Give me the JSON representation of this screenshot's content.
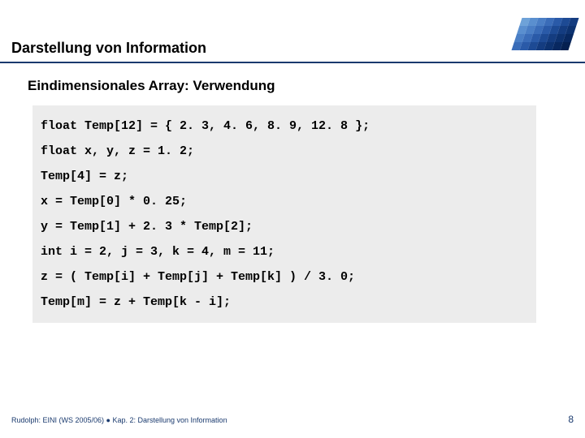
{
  "header": {
    "title": "Darstellung von Information",
    "underline_color": "#1a3a6e",
    "logo": {
      "colors_row1": [
        "#6ea2d8",
        "#5a8fcf",
        "#4a7ec5",
        "#3a6cb8",
        "#2a5aa8",
        "#1d4a94",
        "#143c80"
      ],
      "colors_row2": [
        "#5a8fcf",
        "#4a7ec5",
        "#3a6cb8",
        "#2a5aa8",
        "#1d4a94",
        "#143c80",
        "#0d3270"
      ],
      "colors_row3": [
        "#4a7ec5",
        "#3a6cb8",
        "#2a5aa8",
        "#1d4a94",
        "#143c80",
        "#0d3270",
        "#082860"
      ],
      "colors_row4": [
        "#3a6cb8",
        "#2a5aa8",
        "#1d4a94",
        "#143c80",
        "#0d3270",
        "#082860",
        "#052050"
      ]
    }
  },
  "subtitle": "Eindimensionales Array: Verwendung",
  "code": {
    "background": "#ececec",
    "font_family": "Courier New",
    "fontsize": 15,
    "lines": [
      "float Temp[12] = { 2. 3, 4. 6, 8. 9, 12. 8 };",
      "float x, y, z = 1. 2;",
      "Temp[4] = z;",
      "x = Temp[0] * 0. 25;",
      "y = Temp[1] + 2. 3 * Temp[2];",
      "int i = 2, j = 3, k = 4, m = 11;",
      "z = ( Temp[i] + Temp[j] + Temp[k] ) / 3. 0;",
      "Temp[m] = z + Temp[k - i];"
    ]
  },
  "footer": {
    "left": "Rudolph: EINI (WS 2005/06) ● Kap. 2: Darstellung von Information",
    "page": "8",
    "color": "#1a3a6e"
  }
}
